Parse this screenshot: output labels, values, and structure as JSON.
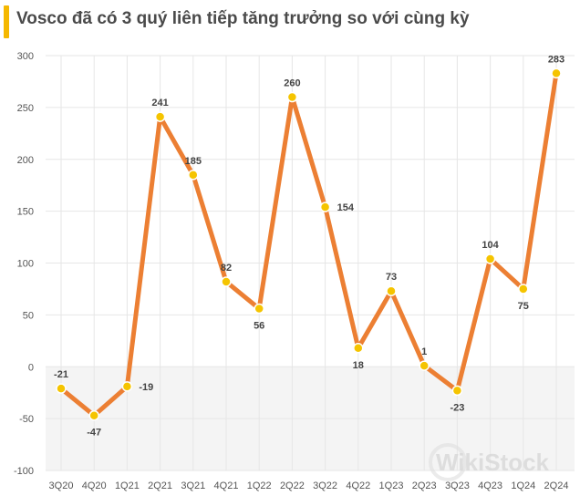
{
  "chart_data": {
    "type": "line",
    "title": "Vosco đã có 3 quý liên tiếp tăng trưởng so với cùng kỳ",
    "xlabel": "",
    "ylabel": "",
    "categories": [
      "3Q20",
      "4Q20",
      "1Q21",
      "2Q21",
      "3Q21",
      "4Q21",
      "1Q22",
      "2Q22",
      "3Q22",
      "4Q22",
      "1Q23",
      "2Q23",
      "3Q23",
      "4Q23",
      "1Q24",
      "2Q24"
    ],
    "series": [
      {
        "name": "Vosco",
        "values": [
          -21,
          -47,
          -19,
          241,
          185,
          82,
          56,
          260,
          154,
          18,
          73,
          1,
          -23,
          104,
          75,
          283
        ]
      }
    ],
    "data_labels": [
      "-21",
      "-47",
      "-19",
      "241",
      "185",
      "82",
      "56",
      "260",
      "154",
      "18",
      "73",
      "1",
      "-23",
      "104",
      "75",
      "283"
    ],
    "label_sides": [
      "above",
      "below",
      "right",
      "above",
      "above",
      "above",
      "below",
      "above",
      "right",
      "below",
      "above",
      "above",
      "below",
      "above",
      "below",
      "above"
    ],
    "ylim": [
      -100,
      300
    ],
    "yticks": [
      -100,
      -50,
      0,
      50,
      100,
      150,
      200,
      250,
      300
    ],
    "grid": true,
    "legend": "none"
  },
  "colors": {
    "line": "#ec7f33",
    "marker": "#f5c400",
    "accent": "#f5b800",
    "grid": "#e6e6e6"
  },
  "watermark": "WikiStock"
}
